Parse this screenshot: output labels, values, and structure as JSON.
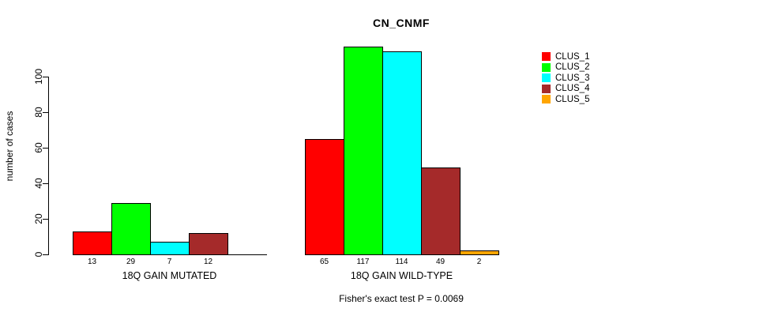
{
  "chart_data": {
    "type": "bar",
    "title": "CN_CNMF",
    "ylabel": "number of cases",
    "footnote": "Fisher's exact test P = 0.0069",
    "ylim": [
      0,
      120
    ],
    "yticks": [
      0,
      20,
      40,
      60,
      80,
      100
    ],
    "grid": false,
    "legend_position": "right",
    "legend": [
      {
        "label": "CLUS_1",
        "color": "#ff0000"
      },
      {
        "label": "CLUS_2",
        "color": "#00ff00"
      },
      {
        "label": "CLUS_3",
        "color": "#00ffff"
      },
      {
        "label": "CLUS_4",
        "color": "#a52a2a"
      },
      {
        "label": "CLUS_5",
        "color": "#ffa500"
      }
    ],
    "groups": [
      {
        "label": "18Q GAIN MUTATED",
        "values": [
          13,
          29,
          7,
          12,
          null
        ]
      },
      {
        "label": "18Q GAIN WILD-TYPE",
        "values": [
          65,
          117,
          114,
          49,
          2
        ]
      }
    ]
  }
}
